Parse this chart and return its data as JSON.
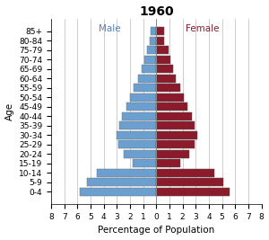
{
  "title": "1960",
  "xlabel": "Percentage of Population",
  "ylabel": "Age",
  "male_label": "Male",
  "female_label": "Female",
  "age_groups": [
    "0-4",
    "5-9",
    "10-14",
    "15-19",
    "20-24",
    "25-29",
    "30-34",
    "35-39",
    "40-44",
    "45-49",
    "50-54",
    "55-59",
    "60-64",
    "65-69",
    "70-74",
    "75-79",
    "80-84",
    "85+"
  ],
  "male_values": [
    5.8,
    5.3,
    4.5,
    1.8,
    2.5,
    2.9,
    3.0,
    2.8,
    2.6,
    2.3,
    2.0,
    1.7,
    1.4,
    1.1,
    0.9,
    0.7,
    0.5,
    0.4
  ],
  "female_values": [
    5.6,
    5.1,
    4.4,
    1.8,
    2.5,
    2.9,
    3.1,
    2.9,
    2.7,
    2.4,
    2.1,
    1.8,
    1.5,
    1.3,
    1.1,
    0.9,
    0.6,
    0.6
  ],
  "male_color": "#6A9FD0",
  "female_color": "#8B1A2A",
  "male_label_color": "#5080C0",
  "female_label_color": "#8B1A2A",
  "grid_color": "#BBBBBB",
  "xlim": 8,
  "background_color": "#FFFFFF",
  "title_fontsize": 10,
  "label_fontsize": 6.5,
  "axis_label_fontsize": 7.5
}
